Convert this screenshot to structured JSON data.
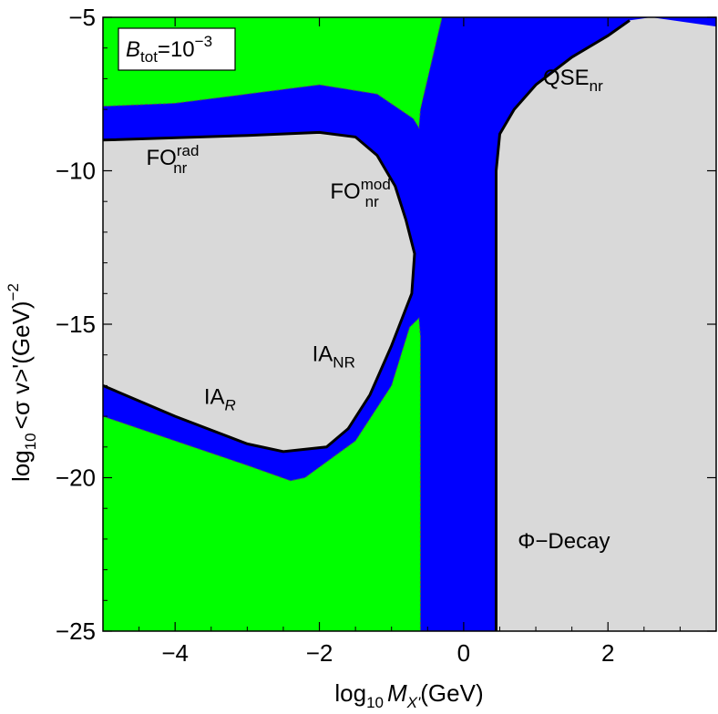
{
  "chart_data": {
    "type": "area",
    "xlabel": {
      "prefix": "log",
      "base": "10",
      "var": "M",
      "sub": "X'",
      "unit": "(GeV)"
    },
    "ylabel": {
      "prefix": "log",
      "base": "10",
      "body": "<σ v>'(GeV)",
      "sup": "−2"
    },
    "xlim": [
      -5,
      3.5
    ],
    "ylim": [
      -25,
      -5
    ],
    "x_ticks": [
      -4,
      -2,
      0,
      2
    ],
    "y_ticks": [
      -5,
      -10,
      -15,
      -20,
      -25
    ],
    "x_tick_labels": [
      "−4",
      "−2",
      "0",
      "2"
    ],
    "y_tick_labels": [
      "−5",
      "−10",
      "−15",
      "−20",
      "−25"
    ],
    "legend_box": {
      "var": "B",
      "sub": "tot",
      "mid": "=10",
      "sup": "−3"
    },
    "colors": {
      "green": "#00ff00",
      "blue": "#0000ff",
      "gray": "#d9d9d9",
      "line": "#000000"
    },
    "regions": {
      "green_upper": [
        [
          -5,
          -5
        ],
        [
          -0.3,
          -5
        ],
        [
          -0.4,
          -6
        ],
        [
          -0.5,
          -7
        ],
        [
          -0.6,
          -8
        ],
        [
          -0.62,
          -8.6
        ],
        [
          -0.7,
          -8.3
        ],
        [
          -1.2,
          -7.5
        ],
        [
          -2,
          -7.2
        ],
        [
          -3,
          -7.5
        ],
        [
          -4,
          -7.8
        ],
        [
          -5,
          -7.9
        ]
      ],
      "green_lower": [
        [
          -5,
          -18
        ],
        [
          -4,
          -18.8
        ],
        [
          -3,
          -19.6
        ],
        [
          -2.4,
          -20.1
        ],
        [
          -2.2,
          -20.0
        ],
        [
          -1.5,
          -18.8
        ],
        [
          -1.0,
          -17
        ],
        [
          -0.75,
          -15.1
        ],
        [
          -0.62,
          -14.8
        ],
        [
          -0.6,
          -15.4
        ],
        [
          -0.6,
          -25
        ],
        [
          -5,
          -25
        ]
      ],
      "gray_left": [
        [
          -5,
          -9.0
        ],
        [
          -3,
          -8.85
        ],
        [
          -2,
          -8.75
        ],
        [
          -1.5,
          -8.9
        ],
        [
          -1.2,
          -9.5
        ],
        [
          -0.95,
          -10.5
        ],
        [
          -0.8,
          -11.6
        ],
        [
          -0.68,
          -12.7
        ],
        [
          -0.72,
          -14.0
        ],
        [
          -1.0,
          -15.7
        ],
        [
          -1.3,
          -17.3
        ],
        [
          -1.6,
          -18.4
        ],
        [
          -1.9,
          -19.0
        ],
        [
          -2.5,
          -19.15
        ],
        [
          -3,
          -18.9
        ],
        [
          -4,
          -18.0
        ],
        [
          -5,
          -17.0
        ]
      ],
      "gray_right": [
        [
          0.45,
          -25
        ],
        [
          0.45,
          -10
        ],
        [
          0.5,
          -8.8
        ],
        [
          0.7,
          -8.0
        ],
        [
          1.0,
          -7.2
        ],
        [
          1.5,
          -6.3
        ],
        [
          2.0,
          -5.6
        ],
        [
          2.3,
          -5.1
        ],
        [
          2.6,
          -5.0
        ],
        [
          3.2,
          -5.2
        ],
        [
          3.5,
          -5.3
        ],
        [
          3.5,
          -25
        ]
      ],
      "boundary_left": [
        [
          -5,
          -9.0
        ],
        [
          -3,
          -8.85
        ],
        [
          -2,
          -8.75
        ],
        [
          -1.5,
          -8.9
        ],
        [
          -1.2,
          -9.5
        ],
        [
          -0.95,
          -10.5
        ],
        [
          -0.8,
          -11.6
        ],
        [
          -0.68,
          -12.7
        ],
        [
          -0.72,
          -14.0
        ],
        [
          -1.0,
          -15.7
        ],
        [
          -1.3,
          -17.3
        ],
        [
          -1.6,
          -18.4
        ],
        [
          -1.9,
          -19.0
        ],
        [
          -2.5,
          -19.15
        ],
        [
          -3,
          -18.9
        ],
        [
          -4,
          -18.0
        ],
        [
          -5,
          -17.0
        ]
      ],
      "boundary_right": [
        [
          0.45,
          -25
        ],
        [
          0.45,
          -10
        ],
        [
          0.5,
          -8.8
        ],
        [
          0.7,
          -8.0
        ],
        [
          1.0,
          -7.2
        ],
        [
          1.5,
          -6.3
        ],
        [
          2.0,
          -5.6
        ],
        [
          2.3,
          -5.1
        ]
      ]
    },
    "annotations": [
      {
        "base": "FO",
        "sup": "rad",
        "sub": "nr",
        "x": -4.4,
        "y": -9.8
      },
      {
        "base": "FO",
        "sup": "mod",
        "sub": "nr",
        "x": -1.85,
        "y": -10.9
      },
      {
        "base": "QSE",
        "sub": "nr",
        "x": 1.1,
        "y": -7.2
      },
      {
        "base": "IA",
        "sub": "NR",
        "x": -2.1,
        "y": -16.2
      },
      {
        "base": "IA",
        "sub": "R",
        "x": -3.6,
        "y": -17.6
      },
      {
        "base": "Φ−Decay",
        "x": 0.75,
        "y": -22.3
      }
    ]
  }
}
